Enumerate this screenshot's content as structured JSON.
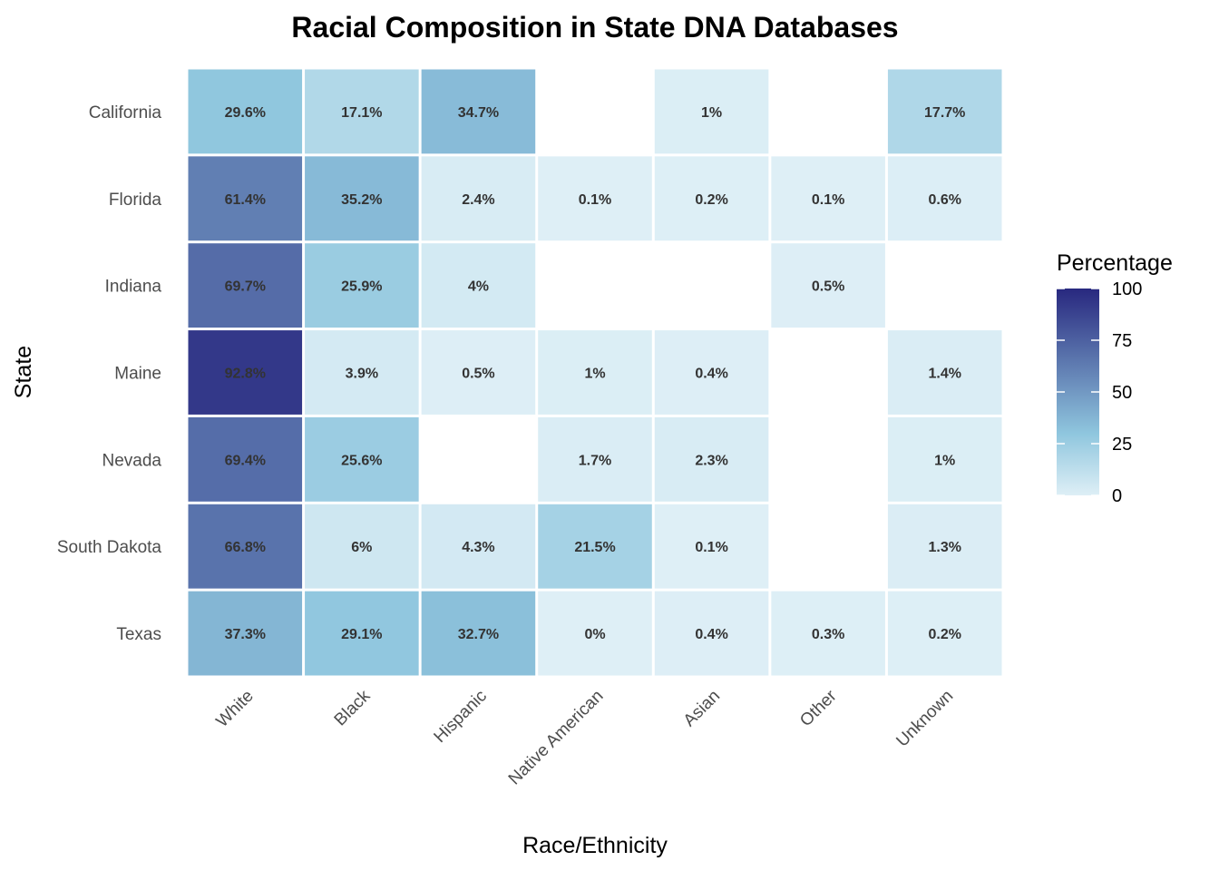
{
  "chart_data": {
    "type": "heatmap",
    "title": "Racial Composition in State DNA Databases",
    "xlabel": "Race/Ethnicity",
    "ylabel": "State",
    "x_categories": [
      "White",
      "Black",
      "Hispanic",
      "Native American",
      "Asian",
      "Other",
      "Unknown"
    ],
    "y_categories": [
      "California",
      "Florida",
      "Indiana",
      "Maine",
      "Nevada",
      "South Dakota",
      "Texas"
    ],
    "values": [
      [
        29.6,
        17.1,
        34.7,
        null,
        1,
        null,
        17.7
      ],
      [
        61.4,
        35.2,
        2.4,
        0.1,
        0.2,
        0.1,
        0.6
      ],
      [
        69.7,
        25.9,
        4,
        null,
        null,
        0.5,
        null
      ],
      [
        92.8,
        3.9,
        0.5,
        1,
        0.4,
        null,
        1.4
      ],
      [
        69.4,
        25.6,
        null,
        1.7,
        2.3,
        null,
        1
      ],
      [
        66.8,
        6,
        4.3,
        21.5,
        0.1,
        null,
        1.3
      ],
      [
        37.3,
        29.1,
        32.7,
        0,
        0.4,
        0.3,
        0.2
      ]
    ],
    "value_suffix": "%",
    "legend": {
      "title": "Percentage",
      "position": "right",
      "range": [
        0,
        100
      ],
      "ticks": [
        0,
        25,
        50,
        75,
        100
      ],
      "color_low": "#deeff6",
      "color_mid": "#8fc6de",
      "color_high": "#28287f"
    },
    "grid": false
  }
}
